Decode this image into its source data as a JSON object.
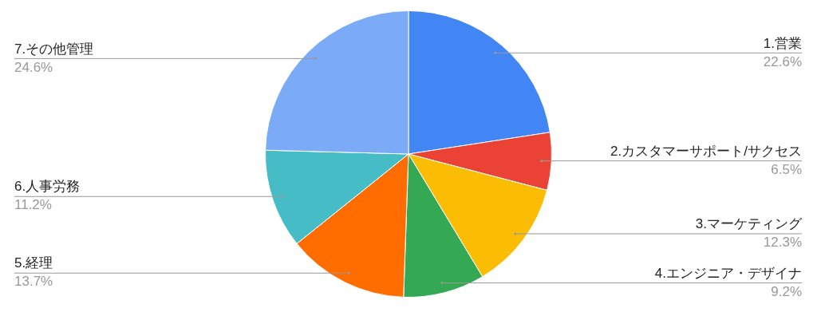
{
  "chart_data": {
    "type": "pie",
    "categories": [
      "1.営業",
      "2.カスタマーサポート/サクセス",
      "3.マーケティング",
      "4.エンジニア・デザイナ",
      "5.経理",
      "6.人事労務",
      "7.その他管理"
    ],
    "values": [
      22.6,
      6.5,
      12.3,
      9.2,
      13.7,
      11.2,
      24.6
    ],
    "colors": [
      "#4285f4",
      "#ea4335",
      "#fbbc04",
      "#34a853",
      "#ff6d01",
      "#46bdc6",
      "#7baaf7"
    ],
    "value_labels": [
      "22.6%",
      "6.5%",
      "12.3%",
      "9.2%",
      "13.7%",
      "11.2%",
      "24.6%"
    ],
    "legend": false
  }
}
